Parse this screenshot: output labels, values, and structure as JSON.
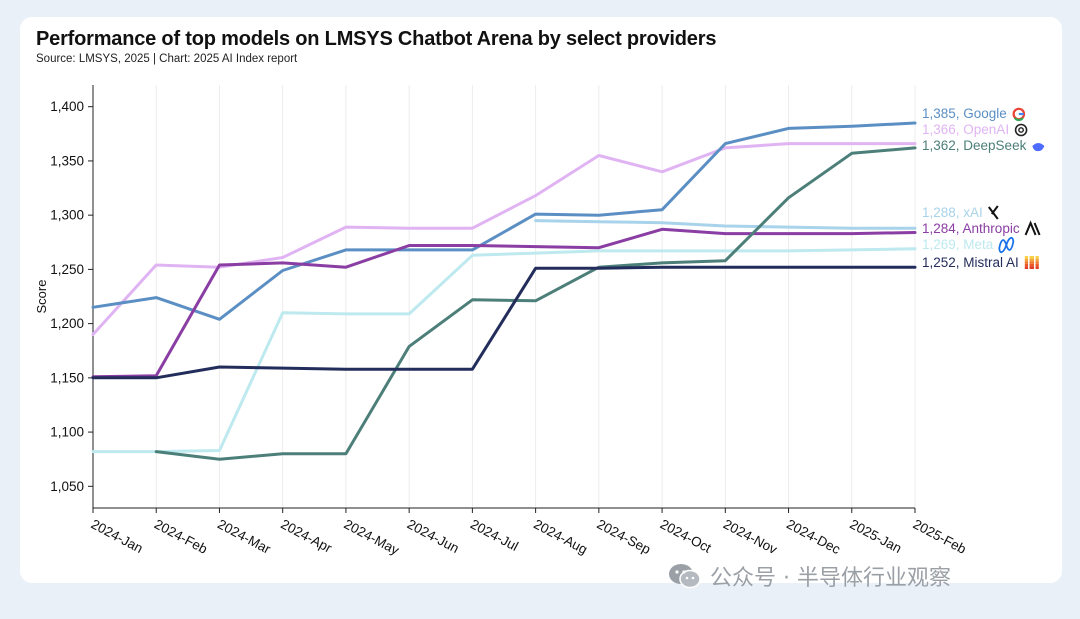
{
  "page": {
    "watermark": "公众号 · 半导体行业观察"
  },
  "chart_data": {
    "type": "line",
    "title": "Performance of top models on LMSYS Chatbot Arena by select providers",
    "subtitle": "Source: LMSYS, 2025 | Chart: 2025 AI Index report",
    "xlabel": "",
    "ylabel": "Score",
    "ylim": [
      1030,
      1420
    ],
    "yticks": [
      1050,
      1100,
      1150,
      1200,
      1250,
      1300,
      1350,
      1400
    ],
    "ytick_labels": [
      "1,050",
      "1,100",
      "1,150",
      "1,200",
      "1,250",
      "1,300",
      "1,350",
      "1,400"
    ],
    "categories": [
      "2024-Jan",
      "2024-Feb",
      "2024-Mar",
      "2024-Apr",
      "2024-May",
      "2024-Jun",
      "2024-Jul",
      "2024-Aug",
      "2024-Sep",
      "2024-Oct",
      "2024-Nov",
      "2024-Dec",
      "2025-Jan",
      "2025-Feb"
    ],
    "series": [
      {
        "name": "OpenAI",
        "label": "1,366, OpenAI",
        "color": "#e0b4f3",
        "icon": "openai-icon",
        "values": [
          1190,
          1254,
          1252,
          1261,
          1289,
          1288,
          1288,
          1318,
          1355,
          1340,
          1362,
          1366,
          1366,
          1366
        ]
      },
      {
        "name": "Meta",
        "label": "1,269, Meta",
        "color": "#bde9ef",
        "icon": "meta-icon",
        "values": [
          1082,
          1082,
          1083,
          1210,
          1209,
          1209,
          1263,
          1265,
          1267,
          1267,
          1267,
          1267,
          1268,
          1269
        ]
      },
      {
        "name": "xAI",
        "label": "1,288, xAI",
        "color": "#a8d3ea",
        "icon": "xai-icon",
        "values": [
          null,
          null,
          null,
          null,
          null,
          null,
          null,
          1295,
          1294,
          1293,
          1290,
          1289,
          1288,
          1288
        ]
      },
      {
        "name": "Google",
        "label": "1,385, Google",
        "color": "#5b8fc4",
        "icon": "google-icon",
        "values": [
          1215,
          1224,
          1204,
          1249,
          1268,
          1268,
          1268,
          1301,
          1300,
          1305,
          1366,
          1380,
          1382,
          1385
        ]
      },
      {
        "name": "Anthropic",
        "label": "1,284, Anthropic",
        "color": "#8a3ea3",
        "icon": "anthropic-icon",
        "values": [
          1151,
          1152,
          1254,
          1256,
          1252,
          1272,
          1272,
          1271,
          1270,
          1287,
          1283,
          1283,
          1283,
          1284
        ]
      },
      {
        "name": "DeepSeek",
        "label": "1,362, DeepSeek",
        "color": "#4d7f7a",
        "icon": "deepseek-icon",
        "values": [
          null,
          1082,
          1075,
          1080,
          1080,
          1179,
          1222,
          1221,
          1252,
          1256,
          1258,
          1316,
          1357,
          1362
        ]
      },
      {
        "name": "Mistral AI",
        "label": "1,252, Mistral AI",
        "color": "#232d5c",
        "icon": "mistral-icon",
        "values": [
          1150,
          1150,
          1160,
          1159,
          1158,
          1158,
          1158,
          1251,
          1251,
          1252,
          1252,
          1252,
          1252,
          1252
        ]
      }
    ],
    "label_order": [
      "Google",
      "OpenAI",
      "DeepSeek",
      "xAI",
      "Anthropic",
      "Meta",
      "Mistral AI"
    ],
    "grid": true,
    "legend": "right-end labels"
  }
}
